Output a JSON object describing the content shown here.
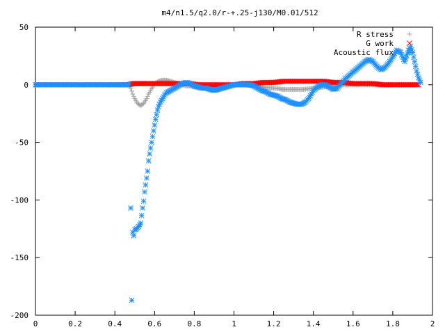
{
  "chart_data": {
    "type": "scatter",
    "title": "m4/n1.5/q2.0/r-+.25-j130/M0.01/512",
    "xlabel": "",
    "ylabel": "",
    "xlim": [
      0,
      2
    ],
    "ylim": [
      -200,
      50
    ],
    "xticks": [
      "0",
      "0.2",
      "0.4",
      "0.6",
      "0.8",
      "1",
      "1.2",
      "1.4",
      "1.6",
      "1.8",
      "2"
    ],
    "yticks": [
      "50",
      "0",
      "-50",
      "-100",
      "-150",
      "-200"
    ],
    "xtick_values": [
      0,
      0.2,
      0.4,
      0.6,
      0.8,
      1.0,
      1.2,
      1.4,
      1.6,
      1.8,
      2.0
    ],
    "ytick_values": [
      50,
      0,
      -50,
      -100,
      -150,
      -200
    ],
    "grid": false,
    "legend_position": "top-right",
    "series": [
      {
        "name": "R stress",
        "marker": "plus",
        "color": "#a0a0a0",
        "points": [
          [
            0.0,
            0
          ],
          [
            0.1,
            0
          ],
          [
            0.2,
            0
          ],
          [
            0.3,
            0
          ],
          [
            0.4,
            0
          ],
          [
            0.47,
            0
          ],
          [
            0.48,
            -3
          ],
          [
            0.49,
            -8
          ],
          [
            0.5,
            -12
          ],
          [
            0.51,
            -15
          ],
          [
            0.52,
            -17
          ],
          [
            0.53,
            -18
          ],
          [
            0.54,
            -17
          ],
          [
            0.55,
            -15
          ],
          [
            0.56,
            -12
          ],
          [
            0.57,
            -8
          ],
          [
            0.58,
            -5
          ],
          [
            0.59,
            -2
          ],
          [
            0.6,
            1
          ],
          [
            0.62,
            3
          ],
          [
            0.64,
            4
          ],
          [
            0.66,
            4
          ],
          [
            0.68,
            3
          ],
          [
            0.7,
            2
          ],
          [
            0.72,
            1
          ],
          [
            0.74,
            0
          ],
          [
            0.76,
            -1
          ],
          [
            0.78,
            -1
          ],
          [
            0.8,
            -2
          ],
          [
            0.82,
            -2
          ],
          [
            0.84,
            -2
          ],
          [
            0.86,
            -2
          ],
          [
            0.88,
            -2
          ],
          [
            0.9,
            -2
          ],
          [
            0.92,
            -1
          ],
          [
            0.95,
            -1
          ],
          [
            1.0,
            0
          ],
          [
            1.05,
            0
          ],
          [
            1.1,
            -1
          ],
          [
            1.15,
            -2
          ],
          [
            1.2,
            -3
          ],
          [
            1.25,
            -4
          ],
          [
            1.3,
            -4
          ],
          [
            1.35,
            -4
          ],
          [
            1.4,
            -3
          ],
          [
            1.45,
            -2
          ],
          [
            1.5,
            -1
          ],
          [
            1.55,
            0
          ],
          [
            1.6,
            0
          ],
          [
            1.65,
            0
          ],
          [
            1.7,
            0
          ],
          [
            1.75,
            0
          ],
          [
            1.8,
            0
          ],
          [
            1.85,
            0
          ],
          [
            1.9,
            0
          ],
          [
            1.93,
            0
          ]
        ]
      },
      {
        "name": "G work",
        "marker": "cross",
        "color": "#ff0000",
        "points": [
          [
            0.0,
            0
          ],
          [
            0.1,
            0
          ],
          [
            0.2,
            0
          ],
          [
            0.3,
            0
          ],
          [
            0.4,
            0
          ],
          [
            0.47,
            0
          ],
          [
            0.49,
            1
          ],
          [
            0.51,
            1
          ],
          [
            0.53,
            1
          ],
          [
            0.55,
            1
          ],
          [
            0.57,
            1
          ],
          [
            0.6,
            1
          ],
          [
            0.63,
            1
          ],
          [
            0.66,
            1
          ],
          [
            0.7,
            1
          ],
          [
            0.74,
            1
          ],
          [
            0.78,
            1
          ],
          [
            0.82,
            0
          ],
          [
            0.86,
            0
          ],
          [
            0.9,
            0
          ],
          [
            0.95,
            0
          ],
          [
            1.0,
            0
          ],
          [
            1.05,
            1
          ],
          [
            1.1,
            1
          ],
          [
            1.15,
            2
          ],
          [
            1.2,
            2
          ],
          [
            1.25,
            3
          ],
          [
            1.3,
            3
          ],
          [
            1.35,
            3
          ],
          [
            1.4,
            3
          ],
          [
            1.45,
            3
          ],
          [
            1.5,
            2
          ],
          [
            1.55,
            2
          ],
          [
            1.6,
            1
          ],
          [
            1.65,
            1
          ],
          [
            1.7,
            1
          ],
          [
            1.75,
            0
          ],
          [
            1.8,
            0
          ],
          [
            1.85,
            0
          ],
          [
            1.9,
            0
          ],
          [
            1.93,
            0
          ]
        ]
      },
      {
        "name": "Acoustic flux",
        "marker": "star",
        "color": "#1e90ff",
        "points": [
          [
            0.0,
            0
          ],
          [
            0.05,
            0
          ],
          [
            0.1,
            0
          ],
          [
            0.15,
            0
          ],
          [
            0.2,
            0
          ],
          [
            0.25,
            0
          ],
          [
            0.3,
            0
          ],
          [
            0.35,
            0
          ],
          [
            0.4,
            0
          ],
          [
            0.45,
            0
          ],
          [
            0.47,
            0
          ],
          [
            0.48,
            -107
          ],
          [
            0.485,
            -187
          ],
          [
            0.49,
            -128
          ],
          [
            0.495,
            -131
          ],
          [
            0.5,
            -126
          ],
          [
            0.51,
            -125
          ],
          [
            0.52,
            -123
          ],
          [
            0.53,
            -120
          ],
          [
            0.54,
            -107
          ],
          [
            0.545,
            -101
          ],
          [
            0.55,
            -93
          ],
          [
            0.555,
            -87
          ],
          [
            0.56,
            -81
          ],
          [
            0.565,
            -75
          ],
          [
            0.57,
            -66
          ],
          [
            0.575,
            -60
          ],
          [
            0.58,
            -55
          ],
          [
            0.585,
            -50
          ],
          [
            0.59,
            -45
          ],
          [
            0.595,
            -40
          ],
          [
            0.6,
            -35
          ],
          [
            0.605,
            -30
          ],
          [
            0.61,
            -26
          ],
          [
            0.615,
            -22
          ],
          [
            0.62,
            -19
          ],
          [
            0.63,
            -15
          ],
          [
            0.64,
            -12
          ],
          [
            0.65,
            -9
          ],
          [
            0.66,
            -7
          ],
          [
            0.68,
            -5
          ],
          [
            0.7,
            -3
          ],
          [
            0.72,
            -1
          ],
          [
            0.74,
            1
          ],
          [
            0.76,
            2
          ],
          [
            0.78,
            1
          ],
          [
            0.8,
            -1
          ],
          [
            0.82,
            -2
          ],
          [
            0.84,
            -3
          ],
          [
            0.86,
            -3
          ],
          [
            0.88,
            -4
          ],
          [
            0.9,
            -5
          ],
          [
            0.92,
            -4
          ],
          [
            0.94,
            -3
          ],
          [
            0.96,
            -2
          ],
          [
            0.98,
            -1
          ],
          [
            1.0,
            0
          ],
          [
            1.02,
            0
          ],
          [
            1.04,
            0
          ],
          [
            1.06,
            0
          ],
          [
            1.08,
            0
          ],
          [
            1.1,
            -1
          ],
          [
            1.12,
            -3
          ],
          [
            1.14,
            -5
          ],
          [
            1.16,
            -6
          ],
          [
            1.18,
            -8
          ],
          [
            1.2,
            -9
          ],
          [
            1.22,
            -10
          ],
          [
            1.24,
            -12
          ],
          [
            1.26,
            -13
          ],
          [
            1.28,
            -15
          ],
          [
            1.3,
            -16
          ],
          [
            1.32,
            -17
          ],
          [
            1.34,
            -17
          ],
          [
            1.36,
            -15
          ],
          [
            1.38,
            -11
          ],
          [
            1.4,
            -5
          ],
          [
            1.42,
            -2
          ],
          [
            1.44,
            0
          ],
          [
            1.46,
            0
          ],
          [
            1.48,
            -2
          ],
          [
            1.5,
            -4
          ],
          [
            1.52,
            -3
          ],
          [
            1.54,
            1
          ],
          [
            1.56,
            5
          ],
          [
            1.58,
            8
          ],
          [
            1.6,
            11
          ],
          [
            1.62,
            14
          ],
          [
            1.64,
            17
          ],
          [
            1.66,
            20
          ],
          [
            1.68,
            22
          ],
          [
            1.7,
            20
          ],
          [
            1.72,
            16
          ],
          [
            1.74,
            13
          ],
          [
            1.76,
            15
          ],
          [
            1.78,
            19
          ],
          [
            1.8,
            24
          ],
          [
            1.82,
            30
          ],
          [
            1.84,
            28
          ],
          [
            1.86,
            20
          ],
          [
            1.88,
            30
          ],
          [
            1.89,
            33
          ],
          [
            1.9,
            28
          ],
          [
            1.91,
            20
          ],
          [
            1.92,
            12
          ],
          [
            1.93,
            6
          ],
          [
            1.94,
            2
          ]
        ]
      }
    ]
  }
}
